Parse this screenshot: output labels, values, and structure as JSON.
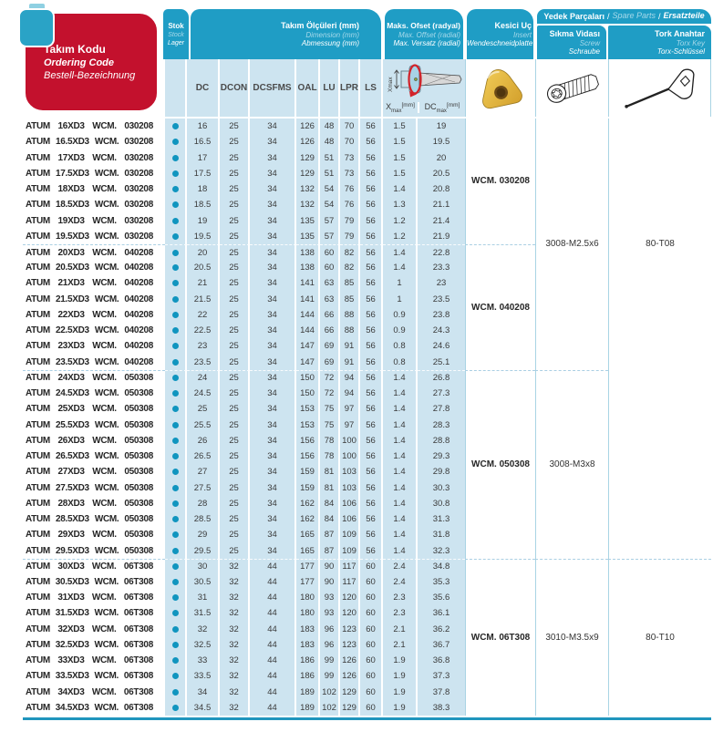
{
  "header": {
    "sep": "/",
    "ordering_code": {
      "tr": "Takım Kodu",
      "en": "Ordering Code",
      "de": "Bestell-Bezeichnung"
    },
    "stock": {
      "tr": "Stok",
      "en": "Stock",
      "de": "Lager"
    },
    "dimensions": {
      "tr": "Takım Ölçüleri (mm)",
      "en": "Dimension (mm)",
      "de": "Abmessung (mm)"
    },
    "offset": {
      "tr": "Maks. Ofset (radyal)",
      "en": "Max. Offset (radial)",
      "de": "Max. Versatz (radial)",
      "diagram_label": "Xmax"
    },
    "insert": {
      "tr": "Kesici Uç",
      "en": "Insert",
      "de": "Wendeschneidplatte"
    },
    "spare_parts": {
      "tr": "Yedek Parçaları",
      "en": "Spare Parts",
      "de": "Ersatzteile"
    },
    "screw": {
      "tr": "Sıkma Vidası",
      "en": "Screw",
      "de": "Schraube"
    },
    "torx": {
      "tr": "Tork Anahtar",
      "en": "Torx Key",
      "de": "Torx-Schlüssel"
    },
    "dim_columns": [
      "DC",
      "DCON",
      "DCSFMS",
      "OAL",
      "LU",
      "LPR",
      "LS"
    ],
    "offset_columns": [
      {
        "base": "X",
        "sub": "max",
        "unit": "[mm]"
      },
      {
        "base": "DC",
        "sub": "max",
        "unit": "[mm]"
      }
    ]
  },
  "colors": {
    "teal_header": "#1f9dc5",
    "red_box": "#c3112d",
    "row_blue": "#cde4f0",
    "stock_dot": "#1095bf",
    "bottom_rule": "#2095bd",
    "insert_yellow": "#e0af35"
  },
  "rows": [
    [
      "ATUM 16XD3 WCM. 030208",
      "16",
      "25",
      "34",
      "126",
      "48",
      "70",
      "56",
      "1.5",
      "19"
    ],
    [
      "ATUM 16.5XD3 WCM. 030208",
      "16.5",
      "25",
      "34",
      "126",
      "48",
      "70",
      "56",
      "1.5",
      "19.5"
    ],
    [
      "ATUM 17XD3 WCM. 030208",
      "17",
      "25",
      "34",
      "129",
      "51",
      "73",
      "56",
      "1.5",
      "20"
    ],
    [
      "ATUM 17.5XD3 WCM. 030208",
      "17.5",
      "25",
      "34",
      "129",
      "51",
      "73",
      "56",
      "1.5",
      "20.5"
    ],
    [
      "ATUM 18XD3 WCM. 030208",
      "18",
      "25",
      "34",
      "132",
      "54",
      "76",
      "56",
      "1.4",
      "20.8"
    ],
    [
      "ATUM 18.5XD3 WCM. 030208",
      "18.5",
      "25",
      "34",
      "132",
      "54",
      "76",
      "56",
      "1.3",
      "21.1"
    ],
    [
      "ATUM 19XD3 WCM. 030208",
      "19",
      "25",
      "34",
      "135",
      "57",
      "79",
      "56",
      "1.2",
      "21.4"
    ],
    [
      "ATUM 19.5XD3 WCM. 030208",
      "19.5",
      "25",
      "34",
      "135",
      "57",
      "79",
      "56",
      "1.2",
      "21.9"
    ],
    [
      "ATUM 20XD3 WCM. 040208",
      "20",
      "25",
      "34",
      "138",
      "60",
      "82",
      "56",
      "1.4",
      "22.8"
    ],
    [
      "ATUM 20.5XD3 WCM. 040208",
      "20.5",
      "25",
      "34",
      "138",
      "60",
      "82",
      "56",
      "1.4",
      "23.3"
    ],
    [
      "ATUM 21XD3 WCM. 040208",
      "21",
      "25",
      "34",
      "141",
      "63",
      "85",
      "56",
      "1",
      "23"
    ],
    [
      "ATUM 21.5XD3 WCM. 040208",
      "21.5",
      "25",
      "34",
      "141",
      "63",
      "85",
      "56",
      "1",
      "23.5"
    ],
    [
      "ATUM 22XD3 WCM. 040208",
      "22",
      "25",
      "34",
      "144",
      "66",
      "88",
      "56",
      "0.9",
      "23.8"
    ],
    [
      "ATUM 22.5XD3 WCM. 040208",
      "22.5",
      "25",
      "34",
      "144",
      "66",
      "88",
      "56",
      "0.9",
      "24.3"
    ],
    [
      "ATUM 23XD3 WCM. 040208",
      "23",
      "25",
      "34",
      "147",
      "69",
      "91",
      "56",
      "0.8",
      "24.6"
    ],
    [
      "ATUM 23.5XD3 WCM. 040208",
      "23.5",
      "25",
      "34",
      "147",
      "69",
      "91",
      "56",
      "0.8",
      "25.1"
    ],
    [
      "ATUM 24XD3 WCM. 050308",
      "24",
      "25",
      "34",
      "150",
      "72",
      "94",
      "56",
      "1.4",
      "26.8"
    ],
    [
      "ATUM 24.5XD3 WCM. 050308",
      "24.5",
      "25",
      "34",
      "150",
      "72",
      "94",
      "56",
      "1.4",
      "27.3"
    ],
    [
      "ATUM 25XD3 WCM. 050308",
      "25",
      "25",
      "34",
      "153",
      "75",
      "97",
      "56",
      "1.4",
      "27.8"
    ],
    [
      "ATUM 25.5XD3 WCM. 050308",
      "25.5",
      "25",
      "34",
      "153",
      "75",
      "97",
      "56",
      "1.4",
      "28.3"
    ],
    [
      "ATUM 26XD3 WCM. 050308",
      "26",
      "25",
      "34",
      "156",
      "78",
      "100",
      "56",
      "1.4",
      "28.8"
    ],
    [
      "ATUM 26.5XD3 WCM. 050308",
      "26.5",
      "25",
      "34",
      "156",
      "78",
      "100",
      "56",
      "1.4",
      "29.3"
    ],
    [
      "ATUM 27XD3 WCM. 050308",
      "27",
      "25",
      "34",
      "159",
      "81",
      "103",
      "56",
      "1.4",
      "29.8"
    ],
    [
      "ATUM 27.5XD3 WCM. 050308",
      "27.5",
      "25",
      "34",
      "159",
      "81",
      "103",
      "56",
      "1.4",
      "30.3"
    ],
    [
      "ATUM 28XD3 WCM. 050308",
      "28",
      "25",
      "34",
      "162",
      "84",
      "106",
      "56",
      "1.4",
      "30.8"
    ],
    [
      "ATUM 28.5XD3 WCM. 050308",
      "28.5",
      "25",
      "34",
      "162",
      "84",
      "106",
      "56",
      "1.4",
      "31.3"
    ],
    [
      "ATUM 29XD3 WCM. 050308",
      "29",
      "25",
      "34",
      "165",
      "87",
      "109",
      "56",
      "1.4",
      "31.8"
    ],
    [
      "ATUM 29.5XD3 WCM. 050308",
      "29.5",
      "25",
      "34",
      "165",
      "87",
      "109",
      "56",
      "1.4",
      "32.3"
    ],
    [
      "ATUM 30XD3 WCM. 06T308",
      "30",
      "32",
      "44",
      "177",
      "90",
      "117",
      "60",
      "2.4",
      "34.8"
    ],
    [
      "ATUM 30.5XD3 WCM. 06T308",
      "30.5",
      "32",
      "44",
      "177",
      "90",
      "117",
      "60",
      "2.4",
      "35.3"
    ],
    [
      "ATUM 31XD3 WCM. 06T308",
      "31",
      "32",
      "44",
      "180",
      "93",
      "120",
      "60",
      "2.3",
      "35.6"
    ],
    [
      "ATUM 31.5XD3 WCM. 06T308",
      "31.5",
      "32",
      "44",
      "180",
      "93",
      "120",
      "60",
      "2.3",
      "36.1"
    ],
    [
      "ATUM 32XD3 WCM. 06T308",
      "32",
      "32",
      "44",
      "183",
      "96",
      "123",
      "60",
      "2.1",
      "36.2"
    ],
    [
      "ATUM 32.5XD3 WCM. 06T308",
      "32.5",
      "32",
      "44",
      "183",
      "96",
      "123",
      "60",
      "2.1",
      "36.7"
    ],
    [
      "ATUM 33XD3 WCM. 06T308",
      "33",
      "32",
      "44",
      "186",
      "99",
      "126",
      "60",
      "1.9",
      "36.8"
    ],
    [
      "ATUM 33.5XD3 WCM. 06T308",
      "33.5",
      "32",
      "44",
      "186",
      "99",
      "126",
      "60",
      "1.9",
      "37.3"
    ],
    [
      "ATUM 34XD3 WCM. 06T308",
      "34",
      "32",
      "44",
      "189",
      "102",
      "129",
      "60",
      "1.9",
      "37.8"
    ],
    [
      "ATUM 34.5XD3 WCM. 06T308",
      "34.5",
      "32",
      "44",
      "189",
      "102",
      "129",
      "60",
      "1.9",
      "38.3"
    ]
  ],
  "groups": {
    "insert": [
      {
        "label": "WCM. 030208",
        "span": 8
      },
      {
        "label": "WCM. 040208",
        "span": 8
      },
      {
        "label": "WCM. 050308",
        "span": 12
      },
      {
        "label": "WCM. 06T308",
        "span": 10
      }
    ],
    "screw": [
      {
        "label": "3008-M2.5x6",
        "span": 16
      },
      {
        "label": "3008-M3x8",
        "span": 12
      },
      {
        "label": "3010-M3.5x9",
        "span": 10
      }
    ],
    "torx": [
      {
        "label": "80-T08",
        "span": 16
      },
      {
        "label": "",
        "span": 12
      },
      {
        "label": "80-T10",
        "span": 10
      }
    ]
  }
}
